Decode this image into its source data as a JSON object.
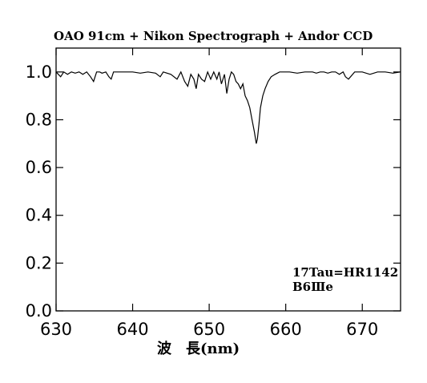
{
  "chart_data": {
    "type": "line",
    "title": "OAO 91cm + Nikon Spectrograph + Andor CCD",
    "xlabel": "波　長(nm)",
    "ylabel": "",
    "xlim": [
      630,
      675
    ],
    "ylim": [
      0.0,
      1.1
    ],
    "x_ticks": [
      630,
      640,
      650,
      660,
      670
    ],
    "y_ticks": [
      "0.0",
      "0.2",
      "0.4",
      "0.6",
      "0.8",
      "1.0"
    ],
    "grid": false,
    "annotations": [
      "17Tau=HR1142",
      "B6Ⅲe"
    ],
    "series": [
      {
        "x": [
          630.0,
          630.6,
          631.0,
          631.5,
          632.0,
          632.5,
          633.0,
          633.5,
          634.0,
          634.5,
          634.9,
          635.3,
          635.7,
          636.0,
          636.5,
          636.9,
          637.2,
          637.5,
          638.0,
          639.0,
          640.0,
          641.0,
          642.0,
          643.0,
          643.6,
          644.0,
          645.0,
          645.8,
          646.3,
          646.8,
          647.2,
          647.6,
          648.0,
          648.3,
          648.6,
          649.0,
          649.4,
          649.8,
          650.2,
          650.6,
          651.0,
          651.3,
          651.6,
          652.0,
          652.3,
          652.6,
          652.9,
          653.2,
          653.5,
          653.8,
          654.1,
          654.4,
          654.7,
          655.0,
          655.3,
          655.6,
          655.9,
          656.15,
          656.3,
          656.5,
          656.7,
          657.0,
          657.3,
          657.7,
          658.1,
          658.6,
          659.2,
          659.8,
          660.5,
          661.5,
          662.5,
          663.5,
          664.0,
          664.5,
          665.0,
          665.5,
          666.0,
          666.5,
          667.0,
          667.5,
          667.8,
          668.2,
          669.0,
          670.0,
          671.0,
          672.0,
          673.0,
          674.0,
          675.0
        ],
        "values": [
          1.0,
          0.98,
          1.0,
          0.99,
          1.0,
          0.995,
          1.0,
          0.99,
          1.0,
          0.98,
          0.96,
          1.0,
          1.0,
          0.995,
          1.0,
          0.98,
          0.97,
          1.0,
          1.0,
          1.0,
          1.0,
          0.995,
          1.0,
          0.995,
          0.98,
          1.0,
          0.99,
          0.97,
          1.0,
          0.96,
          0.94,
          0.99,
          0.97,
          0.93,
          0.99,
          0.97,
          0.96,
          1.0,
          0.97,
          1.0,
          0.97,
          1.0,
          0.95,
          0.99,
          0.91,
          0.97,
          1.0,
          0.99,
          0.96,
          0.95,
          0.93,
          0.95,
          0.9,
          0.88,
          0.85,
          0.8,
          0.75,
          0.7,
          0.72,
          0.78,
          0.85,
          0.9,
          0.93,
          0.96,
          0.98,
          0.99,
          1.0,
          1.0,
          1.0,
          0.995,
          1.0,
          1.0,
          0.995,
          1.0,
          1.0,
          0.995,
          1.0,
          1.0,
          0.99,
          1.0,
          0.98,
          0.97,
          1.0,
          1.0,
          0.99,
          1.0,
          1.0,
          0.995,
          1.0
        ]
      }
    ]
  }
}
